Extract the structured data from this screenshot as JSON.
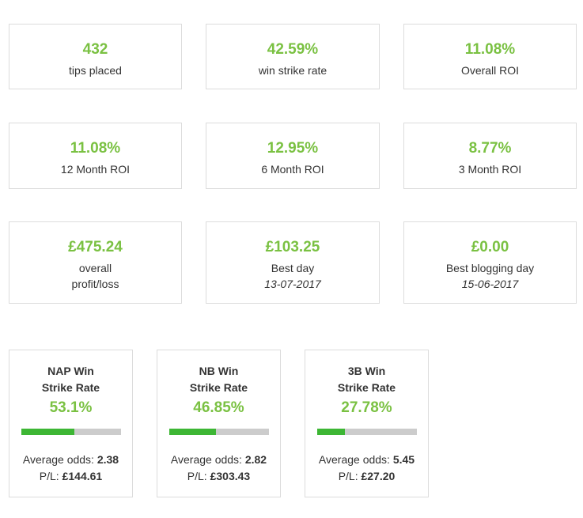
{
  "stats": [
    {
      "value": "432",
      "label": "tips placed"
    },
    {
      "value": "42.59%",
      "label": "win strike rate"
    },
    {
      "value": "11.08%",
      "label": "Overall ROI"
    },
    {
      "value": "11.08%",
      "label": "12 Month ROI"
    },
    {
      "value": "12.95%",
      "label": "6 Month ROI"
    },
    {
      "value": "8.77%",
      "label": "3 Month ROI"
    },
    {
      "value": "£475.24",
      "label_line1": "overall",
      "label_line2": "profit/loss"
    },
    {
      "value": "£103.25",
      "label": "Best day",
      "date": "13-07-2017"
    },
    {
      "value": "£0.00",
      "label": "Best blogging day",
      "date": "15-06-2017"
    }
  ],
  "strike_rates": [
    {
      "title_line1": "NAP Win",
      "title_line2": "Strike Rate",
      "percent": "53.1%",
      "fill": 0.531,
      "avg_label": "Average odds:",
      "avg_value": "2.38",
      "pl_label": "P/L:",
      "pl_value": "£144.61"
    },
    {
      "title_line1": "NB Win",
      "title_line2": "Strike Rate",
      "percent": "46.85%",
      "fill": 0.4685,
      "avg_label": "Average odds:",
      "avg_value": "2.82",
      "pl_label": "P/L:",
      "pl_value": "£303.43"
    },
    {
      "title_line1": "3B Win",
      "title_line2": "Strike Rate",
      "percent": "27.78%",
      "fill": 0.2778,
      "avg_label": "Average odds:",
      "avg_value": "5.45",
      "pl_label": "P/L:",
      "pl_value": "£27.20"
    }
  ],
  "colors": {
    "accent": "#7ac142",
    "bar_fill": "#3db634",
    "bar_track": "#cccccc",
    "border": "#dcdcdc"
  }
}
